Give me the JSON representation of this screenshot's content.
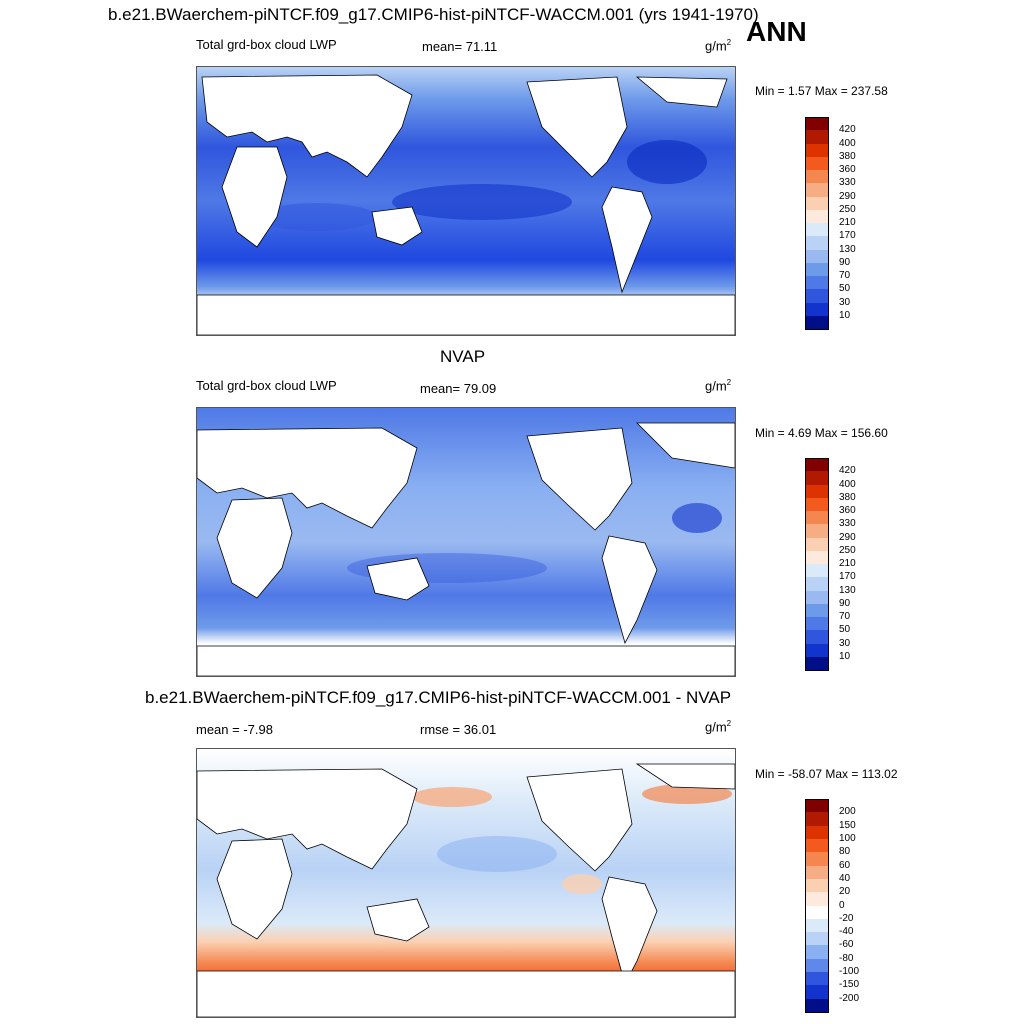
{
  "header": {
    "title": "b.e21.BWaerchem-piNTCF.f09_g17.CMIP6-hist-piNTCF-WACCM.001 (yrs 1941-1970)",
    "season": "ANN"
  },
  "panels": [
    {
      "id": "model",
      "subtitle": "",
      "left_label": "Total grd-box cloud LWP",
      "center_label": "mean=  71.11",
      "unit": "g/m",
      "unit_sup": "2",
      "minmax": "Min =   1.57 Max = 237.58",
      "colorbar": {
        "labels": [
          "420",
          "400",
          "380",
          "360",
          "330",
          "290",
          "250",
          "210",
          "170",
          "130",
          "90",
          "70",
          "50",
          "30",
          "10"
        ],
        "colors": [
          "#800000",
          "#b01a00",
          "#dd3300",
          "#f25a1e",
          "#f4864f",
          "#f6ad83",
          "#fbd0b2",
          "#fdeadc",
          "#dbeaf9",
          "#b9d2f5",
          "#9ab9f0",
          "#6e9aea",
          "#4f79e6",
          "#2f56dd",
          "#1233cc",
          "#000f88"
        ]
      },
      "fill": {
        "ocean_a": "#1f48e0",
        "ocean_b": "#4a74e8",
        "ocean_c": "#8ab0f2"
      }
    },
    {
      "id": "obs",
      "subtitle": "NVAP",
      "left_label": "Total grd-box cloud LWP",
      "center_label": "mean=  79.09",
      "unit": "g/m",
      "unit_sup": "2",
      "minmax": "Min =   4.69 Max = 156.60",
      "colorbar": {
        "labels": [
          "420",
          "400",
          "380",
          "360",
          "330",
          "290",
          "250",
          "210",
          "170",
          "130",
          "90",
          "70",
          "50",
          "30",
          "10"
        ],
        "colors": [
          "#800000",
          "#b01a00",
          "#dd3300",
          "#f25a1e",
          "#f4864f",
          "#f6ad83",
          "#fbd0b2",
          "#fdeadc",
          "#dbeaf9",
          "#b9d2f5",
          "#9ab9f0",
          "#6e9aea",
          "#4f79e6",
          "#2f56dd",
          "#1233cc",
          "#000f88"
        ]
      },
      "fill": {
        "ocean_a": "#4a74e8",
        "ocean_b": "#6f98ee",
        "ocean_c": "#9fbff4"
      }
    },
    {
      "id": "diff",
      "subtitle": "b.e21.BWaerchem-piNTCF.f09_g17.CMIP6-hist-piNTCF-WACCM.001 - NVAP",
      "left_label": "mean =  -7.98",
      "center_label": "rmse =  36.01",
      "unit": "g/m",
      "unit_sup": "2",
      "minmax": "Min = -58.07 Max = 113.02",
      "colorbar": {
        "labels": [
          "200",
          "150",
          "100",
          "80",
          "60",
          "40",
          "20",
          "0",
          "-20",
          "-40",
          "-60",
          "-80",
          "-100",
          "-150",
          "-200"
        ],
        "colors": [
          "#800000",
          "#b01a00",
          "#dd3300",
          "#f25a1e",
          "#f4864f",
          "#f6ad83",
          "#fbd0b2",
          "#fdeadc",
          "#ffffff",
          "#dbeaf9",
          "#b9d2f5",
          "#8ab0f2",
          "#5f88ea",
          "#2f56dd",
          "#1233cc",
          "#000f88"
        ]
      },
      "fill": {
        "ocean_a": "#b9d2f5",
        "ocean_b": "#dbeaf9",
        "ocean_c": "#f4864f"
      }
    }
  ]
}
